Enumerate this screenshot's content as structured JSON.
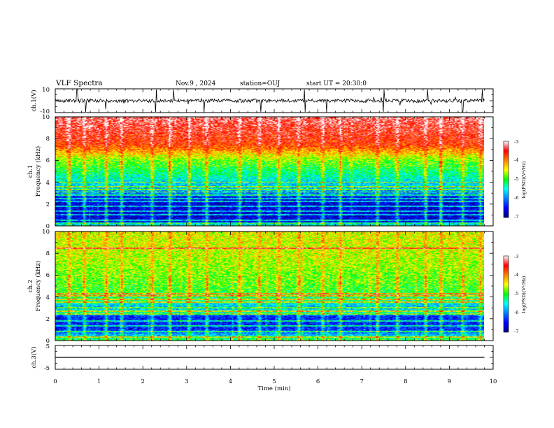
{
  "header": {
    "title": "VLF Spectra",
    "date": "Nov.9 , 2024",
    "station": "station=OUJ",
    "start": "start UT = 20:30:0"
  },
  "chart_data": [
    {
      "panel": "ch1-waveform",
      "type": "line",
      "ylabel": "ch.1(V)",
      "ylim": [
        -10,
        10
      ],
      "yticks": [
        "10",
        "-10"
      ],
      "xlim": [
        0,
        10
      ],
      "trace": {
        "baseline": 0,
        "jitter": 1.5,
        "end": 9.8,
        "spikes_at": [
          0.5,
          0.7,
          1.15,
          2.3,
          2.7,
          3.4,
          4.7,
          5.7,
          6.2,
          7.5,
          8.5,
          9.3,
          9.75
        ]
      }
    },
    {
      "panel": "ch1-spectrogram",
      "type": "heatmap",
      "ylabel_line1": "ch.1",
      "ylabel_line2": "Frequency (kHz)",
      "ylim": [
        0,
        10
      ],
      "yticks": [
        "0",
        "2",
        "4",
        "6",
        "8",
        "10"
      ],
      "xlim": [
        0,
        9.8
      ],
      "colorbar": {
        "label": "log(PSD)(V²/Hz)",
        "range": [
          -7,
          -3
        ],
        "ticks": [
          "-3",
          "-4",
          "-5",
          "-6",
          "-7"
        ]
      },
      "profile": [
        {
          "f": 0.0,
          "v": -5.3
        },
        {
          "f": 0.3,
          "v": -6.6
        },
        {
          "f": 1.0,
          "v": -6.7
        },
        {
          "f": 2.5,
          "v": -6.6
        },
        {
          "f": 3.0,
          "v": -6.0
        },
        {
          "f": 4.0,
          "v": -5.6
        },
        {
          "f": 5.0,
          "v": -5.2
        },
        {
          "f": 6.0,
          "v": -4.8
        },
        {
          "f": 6.8,
          "v": -4.2
        },
        {
          "f": 7.5,
          "v": -3.7
        },
        {
          "f": 10.0,
          "v": -3.3
        }
      ],
      "lines_khz": [
        0.2,
        0.5,
        1.0,
        1.3,
        1.8,
        2.2,
        2.5,
        2.8,
        3.1,
        3.3,
        3.6,
        4.0
      ],
      "bursts_min": [
        0.3,
        0.65,
        1.15,
        1.5,
        2.2,
        2.6,
        3.05,
        3.45,
        4.2,
        4.65,
        5.1,
        5.55,
        6.1,
        6.5,
        7.35,
        7.8,
        8.45,
        8.8,
        9.3,
        9.7
      ]
    },
    {
      "panel": "ch2-spectrogram",
      "type": "heatmap",
      "ylabel_line1": "ch.2",
      "ylabel_line2": "Frequency (kHz)",
      "ylim": [
        0,
        10
      ],
      "yticks": [
        "0",
        "2",
        "4",
        "6",
        "8",
        "10"
      ],
      "xlim": [
        0,
        9.8
      ],
      "colorbar": {
        "label": "log(PSD)(V²/Hz)",
        "range": [
          -7,
          -3
        ],
        "ticks": [
          "-3",
          "-4",
          "-5",
          "-6",
          "-7"
        ]
      },
      "profile": [
        {
          "f": 0.0,
          "v": -5.0
        },
        {
          "f": 0.5,
          "v": -5.8
        },
        {
          "f": 1.0,
          "v": -6.4
        },
        {
          "f": 2.2,
          "v": -6.4
        },
        {
          "f": 2.6,
          "v": -5.3
        },
        {
          "f": 3.0,
          "v": -5.9
        },
        {
          "f": 3.5,
          "v": -5.4
        },
        {
          "f": 4.5,
          "v": -5.0
        },
        {
          "f": 6.0,
          "v": -4.8
        },
        {
          "f": 8.0,
          "v": -4.6
        },
        {
          "f": 10.0,
          "v": -4.5
        }
      ],
      "lines_khz": [
        0.3,
        0.8,
        1.3,
        1.8,
        2.4,
        2.7,
        3.0,
        3.5,
        3.8,
        4.1,
        4.3,
        8.5
      ],
      "bursts_min": [
        0.3,
        0.65,
        1.15,
        1.5,
        2.2,
        2.6,
        3.05,
        3.45,
        4.2,
        4.65,
        5.1,
        5.55,
        6.1,
        6.5,
        7.35,
        7.8,
        8.45,
        8.8,
        9.3,
        9.7
      ]
    },
    {
      "panel": "ch3-waveform",
      "type": "line",
      "ylabel": "ch.3(V)",
      "ylim": [
        -5,
        5
      ],
      "yticks": [
        "5",
        "-5"
      ],
      "xlim": [
        0,
        10
      ],
      "trace": {
        "baseline": 0,
        "jitter": 0,
        "end": 9.8,
        "spikes_at": []
      },
      "xlabel": "Time (min)",
      "xticks": [
        "0",
        "1",
        "2",
        "3",
        "4",
        "5",
        "6",
        "7",
        "8",
        "9",
        "10"
      ]
    }
  ]
}
